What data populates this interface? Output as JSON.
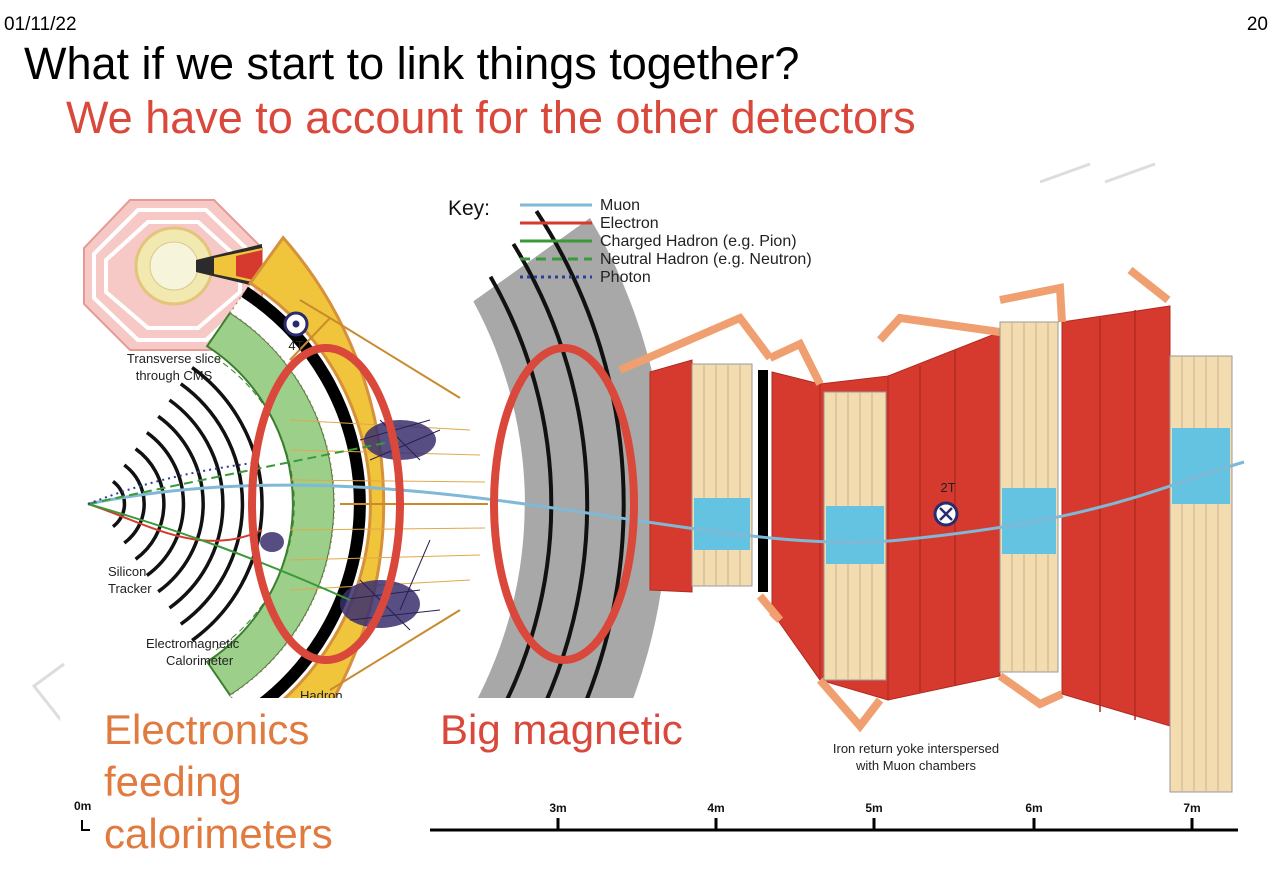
{
  "slide": {
    "date": "01/11/22",
    "page_number": "20",
    "title": "What if we start to link things together?",
    "subtitle": "We have to account for the other detectors"
  },
  "figure": {
    "key": {
      "heading": "Key:",
      "entries": [
        {
          "label": "Muon",
          "color": "#7fb9d6",
          "style": "solid"
        },
        {
          "label": "Electron",
          "color": "#d63a2e",
          "style": "solid"
        },
        {
          "label": "Charged Hadron (e.g. Pion)",
          "color": "#3a9a3a",
          "style": "solid"
        },
        {
          "label": "Neutral Hadron (e.g. Neutron)",
          "color": "#3a9a3a",
          "style": "dashed"
        },
        {
          "label": "Photon",
          "color": "#2a3f9a",
          "style": "dotted"
        }
      ]
    },
    "labels": {
      "transverse_line1": "Transverse slice",
      "transverse_line2": "through CMS",
      "field_inner": "4T",
      "field_outer": "2T",
      "silicon_line1": "Silicon",
      "silicon_line2": "Tracker",
      "ecal_line1": "Electromagnetic",
      "ecal_line2": "Calorimeter",
      "hcal": "Hadron",
      "yoke_line1": "Iron return yoke interspersed",
      "yoke_line2": "with Muon chambers"
    },
    "scale_ticks": [
      "0m",
      "3m",
      "4m",
      "5m",
      "6m",
      "7m"
    ],
    "colors": {
      "yoke": "#d63a2e",
      "calorimeter": "#f0c53c",
      "magnet": "#a8a8a8",
      "muon_chamber": "#f3dcb0",
      "highlight_ring": "#d9483b"
    }
  },
  "annotations": {
    "electronics_line1": "Electronics",
    "electronics_line2": "feeding",
    "electronics_line3": "calorimeters",
    "magnet": "Big magnetic"
  }
}
